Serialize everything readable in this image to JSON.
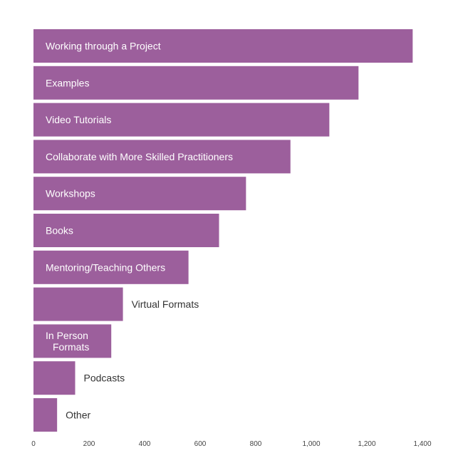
{
  "chart_data": {
    "type": "bar",
    "orientation": "horizontal",
    "title": "",
    "xlabel": "",
    "ylabel": "",
    "categories": [
      "Working through a Project",
      "Examples",
      "Video Tutorials",
      "Collaborate with More Skilled Practitioners",
      "Workshops",
      "Books",
      "Mentoring/Teaching Others",
      "Virtual Formats",
      "In Person Formats",
      "Podcasts",
      "Other"
    ],
    "label_lines": [
      [
        "Working through a Project"
      ],
      [
        "Examples"
      ],
      [
        "Video Tutorials"
      ],
      [
        "Collaborate with More Skilled Practitioners"
      ],
      [
        "Workshops"
      ],
      [
        "Books"
      ],
      [
        "Mentoring/Teaching Others"
      ],
      [
        "Virtual Formats"
      ],
      [
        "In Person",
        "Formats"
      ],
      [
        "Podcasts"
      ],
      [
        "Other"
      ]
    ],
    "values": [
      1365,
      1170,
      1065,
      925,
      765,
      668,
      558,
      322,
      280,
      150,
      85
    ],
    "xlim": [
      0,
      1400
    ],
    "x_ticks": [
      0,
      200,
      400,
      600,
      800,
      1000,
      1200,
      1400
    ],
    "x_tick_labels": [
      "0",
      "200",
      "400",
      "600",
      "800",
      "1,000",
      "1,200",
      "1,400"
    ],
    "grid": false,
    "legend": "none",
    "colors": {
      "bar": "#9c5f9c",
      "label_inside": "#ffffff",
      "label_outside": "#333333",
      "tick": "#444444"
    }
  }
}
